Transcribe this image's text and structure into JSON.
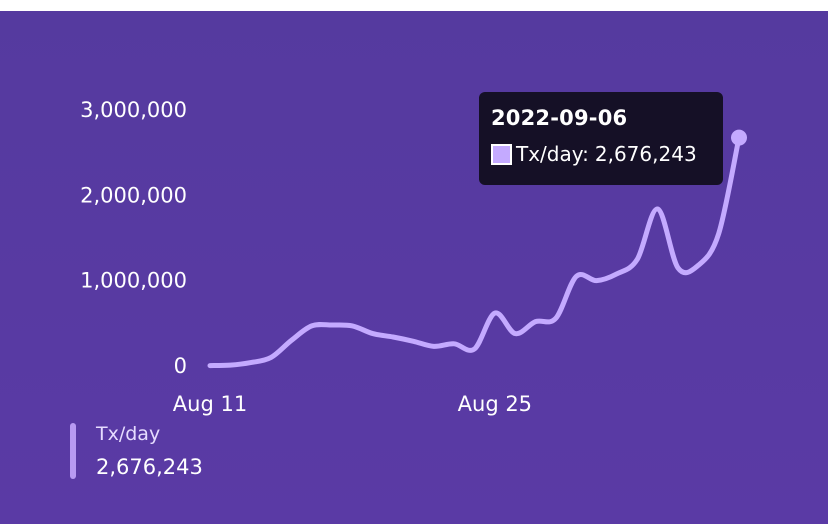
{
  "chart_data": {
    "type": "line",
    "series": [
      {
        "name": "Tx/day",
        "x": [
          "2022-08-11",
          "2022-08-12",
          "2022-08-13",
          "2022-08-14",
          "2022-08-15",
          "2022-08-16",
          "2022-08-17",
          "2022-08-18",
          "2022-08-19",
          "2022-08-20",
          "2022-08-21",
          "2022-08-22",
          "2022-08-23",
          "2022-08-24",
          "2022-08-25",
          "2022-08-26",
          "2022-08-27",
          "2022-08-28",
          "2022-08-29",
          "2022-08-30",
          "2022-08-31",
          "2022-09-01",
          "2022-09-02",
          "2022-09-03",
          "2022-09-04",
          "2022-09-05",
          "2022-09-06"
        ],
        "values": [
          5000,
          10000,
          40000,
          100000,
          300000,
          470000,
          480000,
          470000,
          380000,
          340000,
          290000,
          230000,
          260000,
          200000,
          620000,
          380000,
          520000,
          560000,
          1050000,
          1000000,
          1080000,
          1250000,
          1840000,
          1150000,
          1180000,
          1550000,
          2676243
        ]
      }
    ],
    "x_ticks": [
      "Aug 11",
      "Aug 25"
    ],
    "y_ticks": [
      "0",
      "1,000,000",
      "2,000,000",
      "3,000,000"
    ],
    "ylim": [
      0,
      3000000
    ],
    "line_color": "#c4aaff",
    "background_color": "#563aa2",
    "tooltip": {
      "date": "2022-09-06",
      "series_label": "Tx/day:",
      "value": "2,676,243"
    },
    "legend": {
      "name": "Tx/day",
      "value": "2,676,243"
    }
  }
}
